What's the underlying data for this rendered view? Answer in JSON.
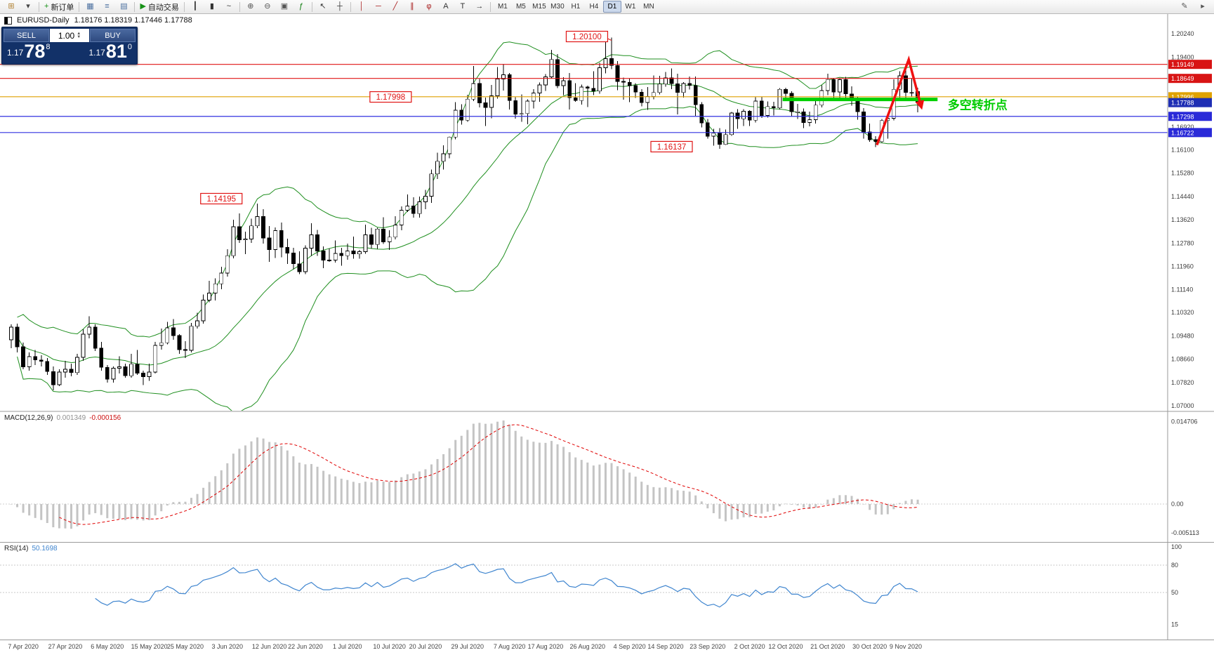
{
  "toolbar": {
    "items": [
      {
        "n": "new-chart-icon",
        "g": "⊞",
        "gc": "#b08030"
      },
      {
        "n": "chart-dropdown-icon",
        "g": "▾",
        "gc": "#444444"
      },
      {
        "n": "sep"
      },
      {
        "n": "new-order-button",
        "g": "+",
        "gc": "#159015",
        "label": "新订单"
      },
      {
        "n": "sep"
      },
      {
        "n": "charts-grid-icon",
        "g": "▦",
        "gc": "#4a6f9f"
      },
      {
        "n": "market-watch-icon",
        "g": "≡",
        "gc": "#4a6f9f"
      },
      {
        "n": "navigator-icon",
        "g": "▤",
        "gc": "#4a6f9f"
      },
      {
        "n": "sep"
      },
      {
        "n": "autotrade-button",
        "g": "▶",
        "gc": "#159015",
        "label": "自动交易"
      },
      {
        "n": "sep"
      },
      {
        "n": "ohlc-bars-icon",
        "g": "┃",
        "gc": "#333333"
      },
      {
        "n": "candlestick-icon",
        "g": "▮",
        "gc": "#333333"
      },
      {
        "n": "line-chart-icon",
        "g": "~",
        "gc": "#333333"
      },
      {
        "n": "sep"
      },
      {
        "n": "zoom-in-icon",
        "g": "⊕",
        "gc": "#555555"
      },
      {
        "n": "zoom-out-icon",
        "g": "⊖",
        "gc": "#555555"
      },
      {
        "n": "tile-windows-icon",
        "g": "▣",
        "gc": "#555555"
      },
      {
        "n": "indicators-icon",
        "g": "ƒ",
        "gc": "#0a7a0a"
      },
      {
        "n": "sep"
      },
      {
        "n": "cursor-icon",
        "g": "↖",
        "gc": "#333333"
      },
      {
        "n": "crosshair-icon",
        "g": "┼",
        "gc": "#333333"
      },
      {
        "n": "sep"
      },
      {
        "n": "vertical-line-icon",
        "g": "│",
        "gc": "#aa2222"
      },
      {
        "n": "horizontal-line-icon",
        "g": "─",
        "gc": "#aa2222"
      },
      {
        "n": "trendline-icon",
        "g": "╱",
        "gc": "#aa2222"
      },
      {
        "n": "channel-icon",
        "g": "∥",
        "gc": "#aa2222"
      },
      {
        "n": "fibonacci-icon",
        "g": "φ",
        "gc": "#aa2222"
      },
      {
        "n": "text-icon",
        "g": "A",
        "gc": "#333333"
      },
      {
        "n": "label-icon",
        "g": "T",
        "gc": "#333333"
      },
      {
        "n": "arrows-icon",
        "g": "→",
        "gc": "#333333"
      },
      {
        "n": "sep"
      }
    ],
    "timeframes": [
      "M1",
      "M5",
      "M15",
      "M30",
      "H1",
      "H4",
      "D1",
      "W1",
      "MN"
    ],
    "active_timeframe": "D1",
    "right_items": [
      {
        "n": "edit-icon",
        "g": "✎",
        "gc": "#555555"
      },
      {
        "n": "forward-icon",
        "g": "▸",
        "gc": "#555555"
      }
    ]
  },
  "symbol_header": {
    "symbol": "EURUSD-Daily",
    "ohlc": "1.18176 1.18319 1.17446 1.17788"
  },
  "trade_panel": {
    "sell": "SELL",
    "buy": "BUY",
    "volume": "1.00",
    "bid_prefix": "1.17",
    "bid_main": "78",
    "bid_sup": "8",
    "ask_prefix": "1.17",
    "ask_main": "81",
    "ask_sup": "0"
  },
  "chart_data": {
    "type": "candlestick",
    "symbol": "EURUSD",
    "timeframe": "Daily",
    "candles": [
      [
        1.0935,
        1.099,
        1.0905,
        1.098
      ],
      [
        1.098,
        1.0992,
        1.089,
        1.091
      ],
      [
        1.091,
        1.0925,
        1.083,
        1.0839
      ],
      [
        1.0839,
        1.089,
        1.0825,
        1.0875
      ],
      [
        1.0875,
        1.0898,
        1.0845,
        1.0863
      ],
      [
        1.0863,
        1.088,
        1.084,
        1.0858
      ],
      [
        1.0858,
        1.087,
        1.081,
        1.0822
      ],
      [
        1.0822,
        1.084,
        1.0755,
        1.0775
      ],
      [
        1.0775,
        1.083,
        1.077,
        1.082
      ],
      [
        1.082,
        1.086,
        1.08,
        1.083
      ],
      [
        1.083,
        1.085,
        1.0805,
        1.0818
      ],
      [
        1.0818,
        1.0885,
        1.081,
        1.0872
      ],
      [
        1.0872,
        1.0972,
        1.086,
        1.0955
      ],
      [
        1.0955,
        1.1019,
        1.094,
        1.098
      ],
      [
        1.098,
        1.099,
        1.0895,
        1.0905
      ],
      [
        1.0905,
        1.0927,
        1.0825,
        1.0837
      ],
      [
        1.0837,
        1.0845,
        1.0782,
        1.0795
      ],
      [
        1.0795,
        1.084,
        1.0783,
        1.0834
      ],
      [
        1.0834,
        1.0876,
        1.0815,
        1.0839
      ],
      [
        1.0839,
        1.085,
        1.08,
        1.0807
      ],
      [
        1.0807,
        1.0885,
        1.08,
        1.0848
      ],
      [
        1.0848,
        1.0898,
        1.081,
        1.0816
      ],
      [
        1.0816,
        1.0825,
        1.0774,
        1.0804
      ],
      [
        1.0804,
        1.085,
        1.0789,
        1.082
      ],
      [
        1.082,
        1.0927,
        1.0815,
        1.0915
      ],
      [
        1.0915,
        1.0975,
        1.09,
        1.0924
      ],
      [
        1.0924,
        1.0999,
        1.0918,
        1.0977
      ],
      [
        1.0977,
        1.1008,
        1.0935,
        1.095
      ],
      [
        1.095,
        1.0955,
        1.0885,
        1.09
      ],
      [
        1.09,
        1.093,
        1.087,
        1.0897
      ],
      [
        1.0897,
        1.0995,
        1.089,
        1.0983
      ],
      [
        1.0983,
        1.1031,
        1.0975,
        1.1002
      ],
      [
        1.1002,
        1.1096,
        1.0992,
        1.1076
      ],
      [
        1.1076,
        1.1145,
        1.1068,
        1.1101
      ],
      [
        1.1101,
        1.1154,
        1.1075,
        1.1134
      ],
      [
        1.1134,
        1.1195,
        1.1115,
        1.1172
      ],
      [
        1.1172,
        1.1257,
        1.116,
        1.1234
      ],
      [
        1.1234,
        1.1362,
        1.1225,
        1.1337
      ],
      [
        1.1337,
        1.1384,
        1.1279,
        1.129
      ],
      [
        1.129,
        1.132,
        1.124,
        1.1293
      ],
      [
        1.1293,
        1.1366,
        1.128,
        1.134
      ],
      [
        1.134,
        1.14195,
        1.1332,
        1.1373
      ],
      [
        1.1373,
        1.14,
        1.1277,
        1.1297
      ],
      [
        1.1297,
        1.134,
        1.1212,
        1.1256
      ],
      [
        1.1256,
        1.1335,
        1.1226,
        1.1323
      ],
      [
        1.1323,
        1.1352,
        1.1228,
        1.1264
      ],
      [
        1.1264,
        1.1294,
        1.1204,
        1.1243
      ],
      [
        1.1243,
        1.1262,
        1.1186,
        1.1205
      ],
      [
        1.1205,
        1.125,
        1.1168,
        1.1177
      ],
      [
        1.1177,
        1.1271,
        1.1169,
        1.1261
      ],
      [
        1.1261,
        1.1349,
        1.1233,
        1.1308
      ],
      [
        1.1308,
        1.1326,
        1.1233,
        1.1251
      ],
      [
        1.1251,
        1.1267,
        1.119,
        1.1218
      ],
      [
        1.1218,
        1.1259,
        1.1212,
        1.1218
      ],
      [
        1.1218,
        1.1288,
        1.121,
        1.1242
      ],
      [
        1.1242,
        1.1262,
        1.1198,
        1.1234
      ],
      [
        1.1234,
        1.1277,
        1.122,
        1.1251
      ],
      [
        1.1251,
        1.1302,
        1.1223,
        1.124
      ],
      [
        1.124,
        1.1255,
        1.1223,
        1.1248
      ],
      [
        1.1248,
        1.1345,
        1.1241,
        1.1308
      ],
      [
        1.1308,
        1.1333,
        1.1259,
        1.1274
      ],
      [
        1.1274,
        1.1333,
        1.1258,
        1.1329
      ],
      [
        1.1329,
        1.1371,
        1.1276,
        1.1283
      ],
      [
        1.1283,
        1.1325,
        1.1254,
        1.13
      ],
      [
        1.13,
        1.1375,
        1.1292,
        1.1343
      ],
      [
        1.1343,
        1.1409,
        1.1325,
        1.1396
      ],
      [
        1.1396,
        1.1452,
        1.139,
        1.1411
      ],
      [
        1.1411,
        1.1442,
        1.137,
        1.1384
      ],
      [
        1.1384,
        1.1444,
        1.137,
        1.1426
      ],
      [
        1.1426,
        1.1468,
        1.14,
        1.1446
      ],
      [
        1.1446,
        1.154,
        1.1422,
        1.1525
      ],
      [
        1.1525,
        1.1601,
        1.1507,
        1.157
      ],
      [
        1.157,
        1.1627,
        1.154,
        1.1597
      ],
      [
        1.1597,
        1.1658,
        1.158,
        1.1656
      ],
      [
        1.1656,
        1.1781,
        1.1648,
        1.1752
      ],
      [
        1.1752,
        1.1773,
        1.17,
        1.1716
      ],
      [
        1.1716,
        1.1807,
        1.171,
        1.1791
      ],
      [
        1.1791,
        1.1909,
        1.1784,
        1.1847
      ],
      [
        1.1847,
        1.1863,
        1.1762,
        1.1778
      ],
      [
        1.1778,
        1.1797,
        1.1696,
        1.1762
      ],
      [
        1.1762,
        1.1842,
        1.1723,
        1.1803
      ],
      [
        1.1803,
        1.1905,
        1.1793,
        1.1863
      ],
      [
        1.1863,
        1.1916,
        1.1822,
        1.1878
      ],
      [
        1.1878,
        1.1884,
        1.1754,
        1.1786
      ],
      [
        1.1786,
        1.1798,
        1.1722,
        1.1738
      ],
      [
        1.1738,
        1.1808,
        1.1711,
        1.174
      ],
      [
        1.174,
        1.179,
        1.1702,
        1.1784
      ],
      [
        1.1784,
        1.1827,
        1.1758,
        1.1813
      ],
      [
        1.1813,
        1.1851,
        1.1782,
        1.1842
      ],
      [
        1.1842,
        1.188,
        1.182,
        1.187
      ],
      [
        1.187,
        1.1966,
        1.1864,
        1.1932
      ],
      [
        1.1932,
        1.1952,
        1.183,
        1.1839
      ],
      [
        1.1839,
        1.1869,
        1.1805,
        1.1857
      ],
      [
        1.1857,
        1.1884,
        1.1754,
        1.1796
      ],
      [
        1.1796,
        1.1848,
        1.1782,
        1.1786
      ],
      [
        1.1786,
        1.1843,
        1.1772,
        1.1834
      ],
      [
        1.1834,
        1.1839,
        1.1763,
        1.183
      ],
      [
        1.183,
        1.189,
        1.1805,
        1.182
      ],
      [
        1.182,
        1.192,
        1.181,
        1.1903
      ],
      [
        1.1903,
        1.1997,
        1.1883,
        1.1935
      ],
      [
        1.1935,
        1.201,
        1.1898,
        1.1911
      ],
      [
        1.1911,
        1.1927,
        1.1823,
        1.1854
      ],
      [
        1.1854,
        1.1868,
        1.1789,
        1.1851
      ],
      [
        1.1851,
        1.1865,
        1.1781,
        1.1839
      ],
      [
        1.1839,
        1.1848,
        1.1795,
        1.1816
      ],
      [
        1.1816,
        1.1827,
        1.1766,
        1.1779
      ],
      [
        1.1779,
        1.1834,
        1.1753,
        1.1801
      ],
      [
        1.1801,
        1.1875,
        1.179,
        1.1815
      ],
      [
        1.1815,
        1.1874,
        1.1808,
        1.1845
      ],
      [
        1.1845,
        1.1888,
        1.1835,
        1.1867
      ],
      [
        1.1867,
        1.19,
        1.1827,
        1.1846
      ],
      [
        1.1846,
        1.1882,
        1.1737,
        1.1815
      ],
      [
        1.1815,
        1.1852,
        1.1797,
        1.1847
      ],
      [
        1.1847,
        1.1871,
        1.1826,
        1.184
      ],
      [
        1.184,
        1.1872,
        1.1732,
        1.1772
      ],
      [
        1.1772,
        1.178,
        1.1691,
        1.1707
      ],
      [
        1.1707,
        1.172,
        1.1651,
        1.1659
      ],
      [
        1.1659,
        1.1686,
        1.1626,
        1.167
      ],
      [
        1.167,
        1.1688,
        1.16137,
        1.163
      ],
      [
        1.163,
        1.1683,
        1.1628,
        1.1665
      ],
      [
        1.1665,
        1.1745,
        1.166,
        1.1742
      ],
      [
        1.1742,
        1.1755,
        1.1685,
        1.1721
      ],
      [
        1.1721,
        1.1755,
        1.1696,
        1.1748
      ],
      [
        1.1748,
        1.1752,
        1.1695,
        1.1716
      ],
      [
        1.1716,
        1.1798,
        1.1708,
        1.1784
      ],
      [
        1.1784,
        1.1799,
        1.1724,
        1.1733
      ],
      [
        1.1733,
        1.1783,
        1.1725,
        1.1765
      ],
      [
        1.1765,
        1.1782,
        1.1733,
        1.176
      ],
      [
        1.176,
        1.1831,
        1.1754,
        1.1826
      ],
      [
        1.1826,
        1.1832,
        1.1786,
        1.1812
      ],
      [
        1.1812,
        1.1819,
        1.1731,
        1.1746
      ],
      [
        1.1746,
        1.1774,
        1.172,
        1.1746
      ],
      [
        1.1746,
        1.1758,
        1.1688,
        1.1708
      ],
      [
        1.1708,
        1.1747,
        1.1694,
        1.1718
      ],
      [
        1.1718,
        1.1794,
        1.1704,
        1.177
      ],
      [
        1.177,
        1.184,
        1.1762,
        1.1822
      ],
      [
        1.1822,
        1.1881,
        1.1806,
        1.1861
      ],
      [
        1.1861,
        1.1866,
        1.1787,
        1.1817
      ],
      [
        1.1817,
        1.1864,
        1.1786,
        1.186
      ],
      [
        1.186,
        1.187,
        1.179,
        1.181
      ],
      [
        1.181,
        1.1837,
        1.1768,
        1.1795
      ],
      [
        1.1795,
        1.18,
        1.1718,
        1.1746
      ],
      [
        1.1746,
        1.1759,
        1.165,
        1.1674
      ],
      [
        1.1674,
        1.1704,
        1.1639,
        1.1647
      ],
      [
        1.1647,
        1.1659,
        1.162,
        1.164
      ],
      [
        1.164,
        1.172,
        1.1635,
        1.1715
      ],
      [
        1.1715,
        1.174,
        1.165,
        1.1723
      ],
      [
        1.1723,
        1.1861,
        1.1716,
        1.1826
      ],
      [
        1.1826,
        1.189,
        1.1797,
        1.1874
      ],
      [
        1.1874,
        1.19149,
        1.1795,
        1.1815
      ],
      [
        1.1815,
        1.18649,
        1.18,
        1.1813
      ],
      [
        1.18176,
        1.18319,
        1.17446,
        1.17788
      ]
    ],
    "x_labels": [
      [
        2,
        "7 Apr 2020"
      ],
      [
        9,
        "27 Apr 2020"
      ],
      [
        16,
        "6 May 2020"
      ],
      [
        23,
        "15 May 2020"
      ],
      [
        29,
        "25 May 2020"
      ],
      [
        36,
        "3 Jun 2020"
      ],
      [
        43,
        "12 Jun 2020"
      ],
      [
        49,
        "22 Jun 2020"
      ],
      [
        56,
        "1 Jul 2020"
      ],
      [
        63,
        "10 Jul 2020"
      ],
      [
        69,
        "20 Jul 2020"
      ],
      [
        76,
        "29 Jul 2020"
      ],
      [
        83,
        "7 Aug 2020"
      ],
      [
        89,
        "17 Aug 2020"
      ],
      [
        96,
        "26 Aug 2020"
      ],
      [
        103,
        "4 Sep 2020"
      ],
      [
        109,
        "14 Sep 2020"
      ],
      [
        116,
        "23 Sep 2020"
      ],
      [
        123,
        "2 Oct 2020"
      ],
      [
        129,
        "12 Oct 2020"
      ],
      [
        136,
        "21 Oct 2020"
      ],
      [
        143,
        "30 Oct 2020"
      ],
      [
        149,
        "9 Nov 2020"
      ]
    ],
    "price_axis": {
      "labels": [
        [
          1.2024,
          "1.20240"
        ],
        [
          1.194,
          "1.19400"
        ],
        [
          1.1692,
          "1.16920"
        ],
        [
          1.161,
          "1.16100"
        ],
        [
          1.1528,
          "1.15280"
        ],
        [
          1.1444,
          "1.14440"
        ],
        [
          1.1362,
          "1.13620"
        ],
        [
          1.1278,
          "1.12780"
        ],
        [
          1.1196,
          "1.11960"
        ],
        [
          1.1114,
          "1.11140"
        ],
        [
          1.1032,
          "1.10320"
        ],
        [
          1.0948,
          "1.09480"
        ],
        [
          1.0866,
          "1.08660"
        ],
        [
          1.0782,
          "1.07820"
        ],
        [
          1.07,
          "1.07000"
        ]
      ],
      "tags": [
        [
          1.19149,
          "1.19149",
          "#d81414"
        ],
        [
          1.18649,
          "1.18649",
          "#d81414"
        ],
        [
          1.17996,
          "1.17996",
          "#e0a200"
        ],
        [
          1.17788,
          "1.17788",
          "#1f2fb4"
        ],
        [
          1.17298,
          "1.17298",
          "#2a2ad8"
        ],
        [
          1.16722,
          "1.16722",
          "#2a2ad8"
        ]
      ]
    },
    "levels": [
      {
        "p": 1.19149,
        "c": "#e01414"
      },
      {
        "p": 1.18649,
        "c": "#e01414"
      },
      {
        "p": 1.17996,
        "c": "#dfa000"
      },
      {
        "p": 1.17298,
        "c": "#3232e0"
      },
      {
        "p": 1.16722,
        "c": "#3232e0"
      }
    ],
    "green_line": {
      "price": 1.179,
      "i1": 128.5,
      "i2": 154.3,
      "color": "#00d000"
    },
    "arrow": {
      "points": [
        [
          144.2,
          1.1628
        ],
        [
          149.5,
          1.1932
        ],
        [
          151.6,
          1.1763
        ]
      ],
      "color": "#f01010"
    },
    "annotations": [
      {
        "text": "1.20100",
        "i": 95.9,
        "p": 1.2014,
        "target_i": 100,
        "target_p": 1.201
      },
      {
        "text": "1.17998",
        "i": 63.2,
        "p": 1.1799
      },
      {
        "text": "1.16137",
        "i": 110,
        "p": 1.1622
      },
      {
        "text": "1.14195",
        "i": 35,
        "p": 1.1437
      }
    ],
    "turning_point": {
      "text": "多空转折点",
      "i": 156,
      "p": 1.1768,
      "color": "#00cc00"
    },
    "indicators": {
      "bollinger": {
        "period": 20,
        "deviation": 2,
        "color": "#1f8f1f"
      },
      "macd": {
        "label": "MACD(12,26,9)",
        "value_main": "0.001349",
        "value_signal": "-0.000156",
        "axis": [
          "0.014706",
          "0.00",
          "-0.005113"
        ],
        "histogram_color": "#c4c4c4",
        "signal_color": "#e00000"
      },
      "rsi": {
        "label": "RSI(14)",
        "value": "50.1698",
        "axis_labels": [
          "100",
          "80",
          "50",
          "15"
        ],
        "levels": [
          80,
          50
        ],
        "color": "#3f85cf"
      }
    }
  }
}
